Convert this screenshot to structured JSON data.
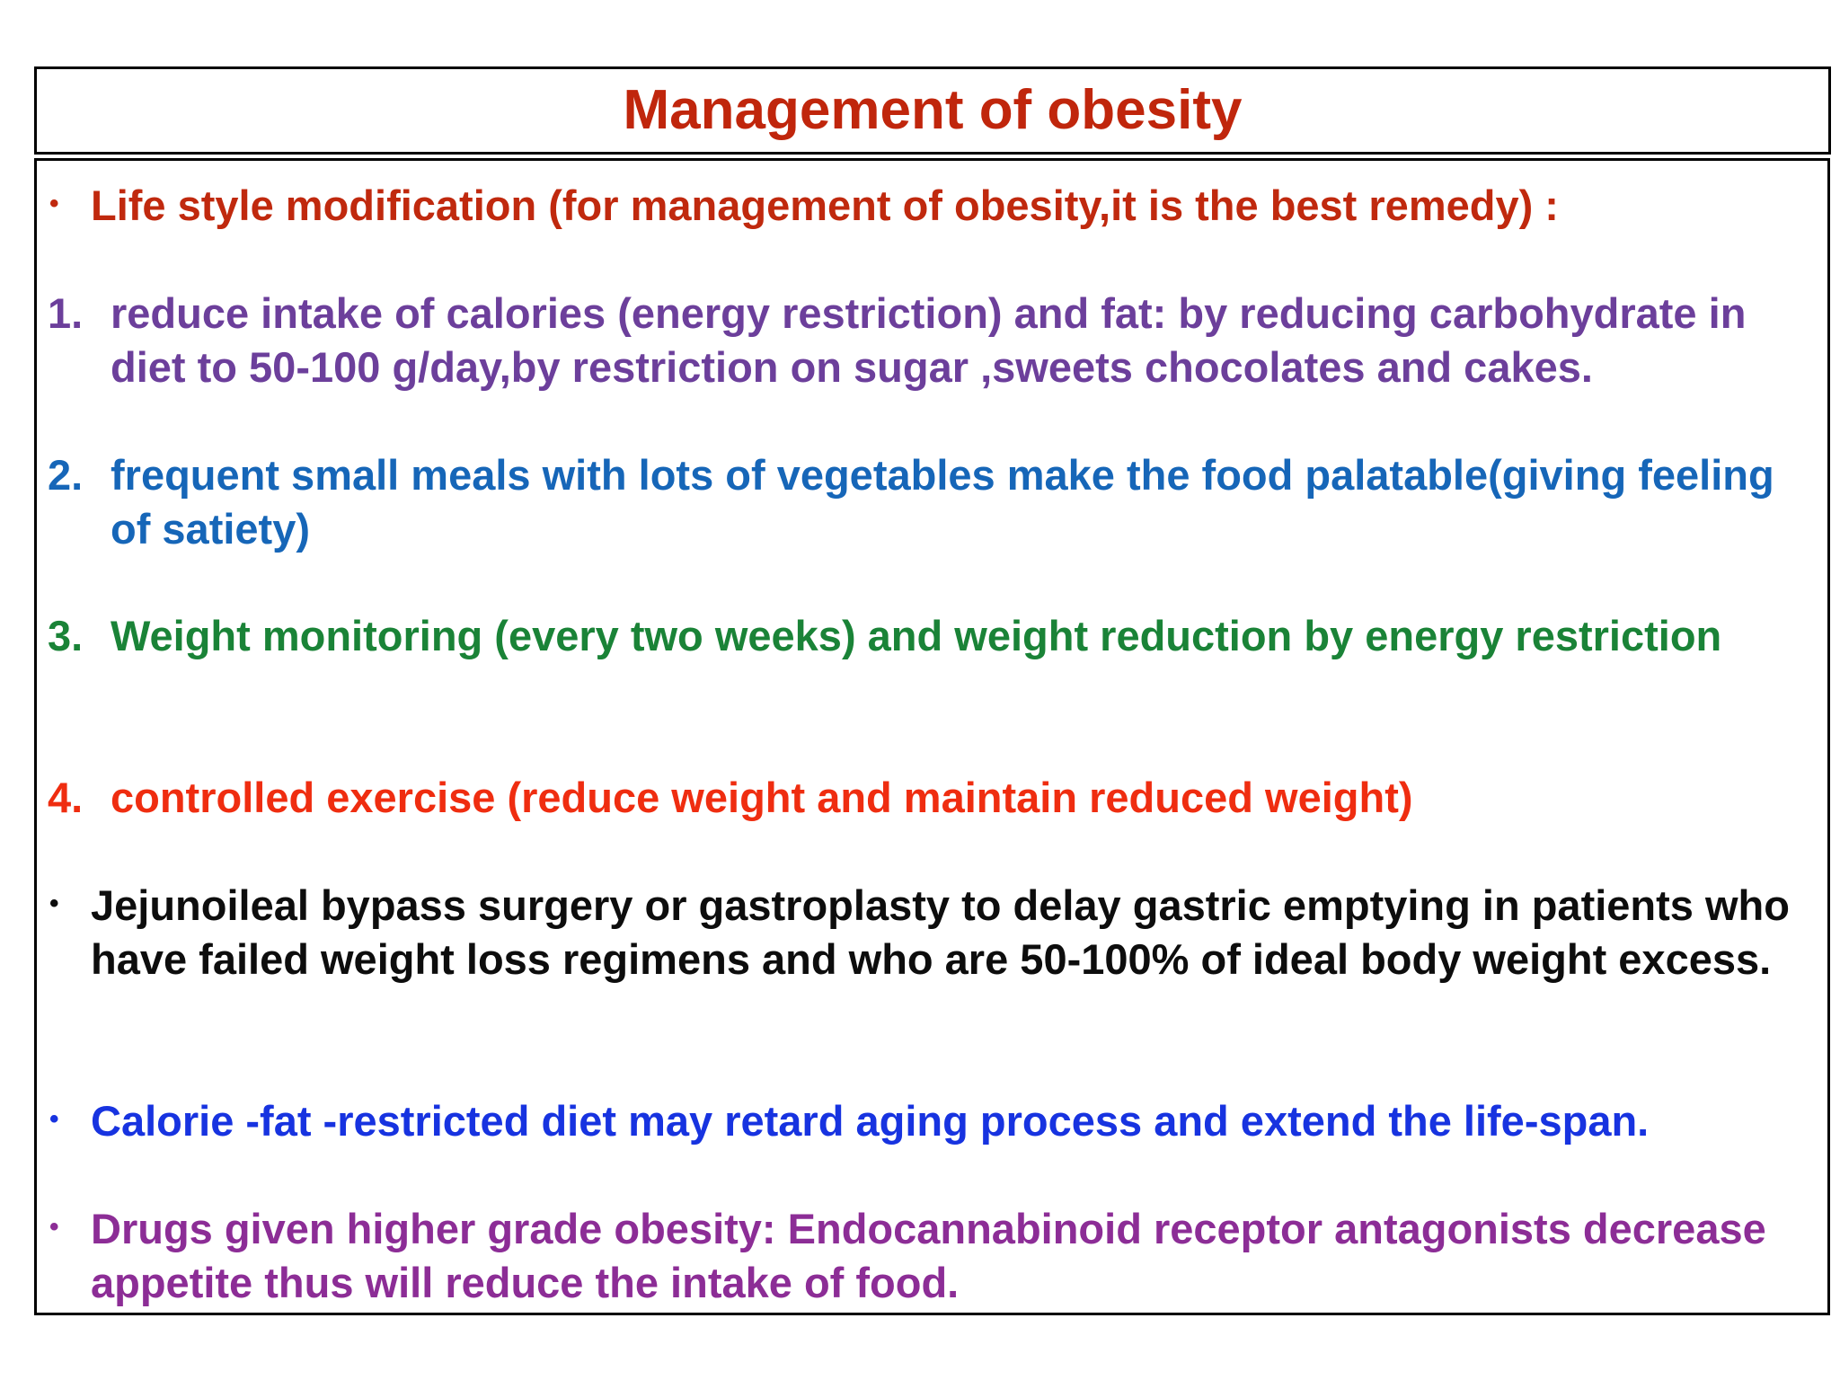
{
  "slide": {
    "title": "Management of obesity",
    "bullet_marker": "•",
    "items": [
      {
        "marker": "•",
        "text": "Life style modification (for management of obesity,it is the best remedy) :",
        "color": "#c0290e"
      },
      {
        "marker": "1.",
        "text": "reduce intake of calories (energy restriction) and fat: by reducing carbohydrate in diet to 50-100 g/day,by restriction on sugar ,sweets chocolates and cakes.",
        "color": "#6c3f9b"
      },
      {
        "marker": "2.",
        "text": "frequent small meals with lots of vegetables make the food palatable(giving feeling of satiety)",
        "color": "#1666b8"
      },
      {
        "marker": "3.",
        "text": "Weight monitoring (every two weeks) and weight reduction by energy restriction",
        "color": "#1a8337"
      },
      {
        "marker": "4.",
        "text": "controlled exercise (reduce weight and maintain reduced weight)",
        "color": "#ef2d10"
      },
      {
        "marker": "•",
        "text": "Jejunoileal bypass surgery or gastroplasty to delay gastric emptying in patients who have failed weight loss regimens and who are 50-100% of ideal body weight excess.",
        "color": "#0d0d0d"
      },
      {
        "marker": "•",
        "text": "Calorie -fat -restricted diet may retard aging process and extend the life-span.",
        "color": "#1733e0"
      },
      {
        "marker": "•",
        "text": "Drugs given higher grade obesity: Endocannabinoid receptor antagonists decrease appetite thus will reduce the intake of food.",
        "color": "#8c2d96"
      }
    ]
  }
}
